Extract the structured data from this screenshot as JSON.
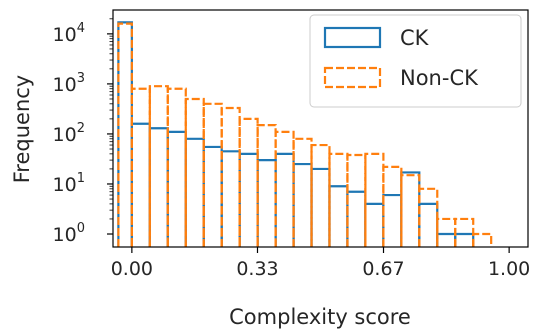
{
  "chart_data": {
    "type": "histogram",
    "xlabel": "Complexity score",
    "ylabel": "Frequency",
    "x_ticks": [
      "0.00",
      "0.33",
      "0.67",
      "1.00"
    ],
    "x_tick_values": [
      0,
      0.333,
      0.667,
      1.0
    ],
    "xlim": [
      -0.05,
      1.05
    ],
    "y_scale": "log",
    "ylim": [
      0.55,
      30000
    ],
    "y_ticks": [
      {
        "base": "10",
        "exp": "0",
        "value": 1
      },
      {
        "base": "10",
        "exp": "1",
        "value": 10
      },
      {
        "base": "10",
        "exp": "2",
        "value": 100
      },
      {
        "base": "10",
        "exp": "3",
        "value": 1000
      },
      {
        "base": "10",
        "exp": "4",
        "value": 10000
      }
    ],
    "legend_position": "top-right",
    "series": [
      {
        "name": "CK",
        "style": "solid",
        "color": "#1f77b4",
        "bins": [
          {
            "x0": -0.0357,
            "x1": 0.0,
            "count": 17000
          },
          {
            "x0": 0.0,
            "x1": 0.0476,
            "count": 160
          },
          {
            "x0": 0.0476,
            "x1": 0.0952,
            "count": 130
          },
          {
            "x0": 0.0952,
            "x1": 0.1429,
            "count": 110
          },
          {
            "x0": 0.1429,
            "x1": 0.1905,
            "count": 80
          },
          {
            "x0": 0.1905,
            "x1": 0.2381,
            "count": 55
          },
          {
            "x0": 0.2381,
            "x1": 0.2857,
            "count": 45
          },
          {
            "x0": 0.2857,
            "x1": 0.3333,
            "count": 40
          },
          {
            "x0": 0.3333,
            "x1": 0.381,
            "count": 30
          },
          {
            "x0": 0.381,
            "x1": 0.4286,
            "count": 40
          },
          {
            "x0": 0.4286,
            "x1": 0.4762,
            "count": 25
          },
          {
            "x0": 0.4762,
            "x1": 0.5238,
            "count": 20
          },
          {
            "x0": 0.5238,
            "x1": 0.5714,
            "count": 9
          },
          {
            "x0": 0.5714,
            "x1": 0.619,
            "count": 7
          },
          {
            "x0": 0.619,
            "x1": 0.6667,
            "count": 4
          },
          {
            "x0": 0.6667,
            "x1": 0.7143,
            "count": 6
          },
          {
            "x0": 0.7143,
            "x1": 0.7619,
            "count": 17
          },
          {
            "x0": 0.7619,
            "x1": 0.8095,
            "count": 4
          },
          {
            "x0": 0.8095,
            "x1": 0.8571,
            "count": 1
          },
          {
            "x0": 0.8571,
            "x1": 0.9048,
            "count": 1
          }
        ]
      },
      {
        "name": "Non-CK",
        "style": "dashed",
        "color": "#ff7f0e",
        "bins": [
          {
            "x0": -0.0357,
            "x1": 0.0,
            "count": 16000
          },
          {
            "x0": 0.0,
            "x1": 0.0476,
            "count": 800
          },
          {
            "x0": 0.0476,
            "x1": 0.0952,
            "count": 900
          },
          {
            "x0": 0.0952,
            "x1": 0.1429,
            "count": 800
          },
          {
            "x0": 0.1429,
            "x1": 0.1905,
            "count": 500
          },
          {
            "x0": 0.1905,
            "x1": 0.2381,
            "count": 400
          },
          {
            "x0": 0.2381,
            "x1": 0.2857,
            "count": 330
          },
          {
            "x0": 0.2857,
            "x1": 0.3333,
            "count": 200
          },
          {
            "x0": 0.3333,
            "x1": 0.381,
            "count": 150
          },
          {
            "x0": 0.381,
            "x1": 0.4286,
            "count": 110
          },
          {
            "x0": 0.4286,
            "x1": 0.4762,
            "count": 80
          },
          {
            "x0": 0.4762,
            "x1": 0.5238,
            "count": 60
          },
          {
            "x0": 0.5238,
            "x1": 0.5714,
            "count": 40
          },
          {
            "x0": 0.5714,
            "x1": 0.619,
            "count": 38
          },
          {
            "x0": 0.619,
            "x1": 0.6667,
            "count": 40
          },
          {
            "x0": 0.6667,
            "x1": 0.7143,
            "count": 22
          },
          {
            "x0": 0.7143,
            "x1": 0.7619,
            "count": 15
          },
          {
            "x0": 0.7619,
            "x1": 0.8095,
            "count": 8
          },
          {
            "x0": 0.8095,
            "x1": 0.8571,
            "count": 2
          },
          {
            "x0": 0.8571,
            "x1": 0.9048,
            "count": 2
          },
          {
            "x0": 0.9048,
            "x1": 0.9524,
            "count": 1
          }
        ]
      }
    ]
  }
}
